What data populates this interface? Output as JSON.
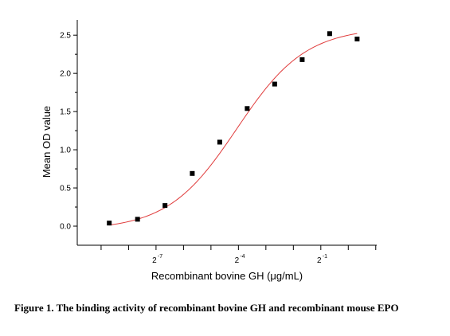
{
  "chart_data": {
    "type": "scatter",
    "title": "",
    "xlabel": "Recombinant bovine GH (μg/mL)",
    "ylabel": "Mean OD value",
    "x_scale": "log2",
    "x_ticks": [
      {
        "value": 0.0078125,
        "base": "2",
        "exponent": "-7"
      },
      {
        "value": 0.0625,
        "base": "2",
        "exponent": "-4"
      },
      {
        "value": 0.5,
        "base": "2",
        "exponent": "-1"
      }
    ],
    "y_ticks": [
      "0.0",
      "0.5",
      "1.0",
      "1.5",
      "2.0",
      "2.5"
    ],
    "xlim": [
      0.00107,
      2.05
    ],
    "ylim": [
      -0.25,
      2.7
    ],
    "grid": false,
    "series": [
      {
        "marker": "square",
        "color": "#000000",
        "x": [
          0.0024,
          0.0049,
          0.0098,
          0.0195,
          0.039,
          0.078,
          0.156,
          0.3125,
          0.625,
          1.25
        ],
        "y": [
          0.04,
          0.09,
          0.27,
          0.69,
          1.1,
          1.54,
          1.86,
          2.18,
          2.52,
          2.45
        ]
      }
    ],
    "fit_curve": {
      "color": "#e03c3c",
      "model": "4PL",
      "bottom": -0.05,
      "top": 2.6,
      "ec50": 0.06,
      "hill": 1.15
    }
  },
  "caption": "Figure 1. The binding activity of recombinant bovine GH and recombinant mouse EPO"
}
